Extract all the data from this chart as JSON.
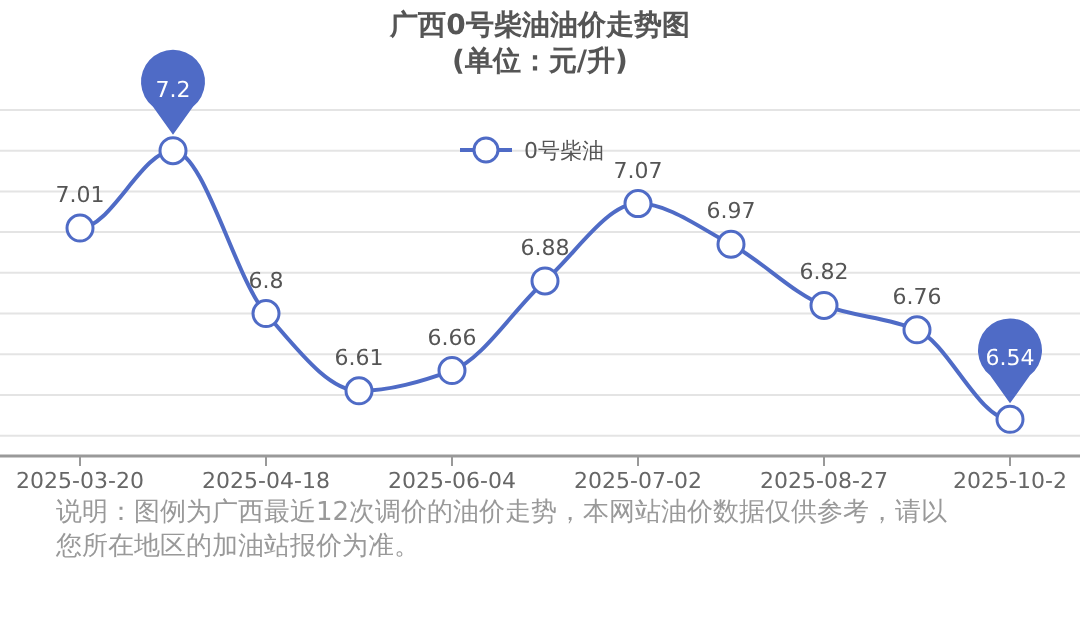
{
  "chart_data": {
    "type": "line",
    "title": "广西0号柴油油价走势图",
    "subtitle": "(单位：元/升)",
    "categories": [
      "2025-03-20",
      null,
      "2025-04-18",
      null,
      "2025-06-04",
      null,
      "2025-07-02",
      null,
      "2025-08-27",
      null,
      "2025-10-2"
    ],
    "series": [
      {
        "name": "0号柴油",
        "color": "#4f6bc6",
        "values": [
          7.01,
          7.2,
          6.8,
          6.61,
          6.66,
          6.88,
          7.07,
          6.97,
          6.82,
          6.76,
          6.54
        ]
      }
    ],
    "ylim": [
      6.45,
      7.3
    ],
    "yticks": [
      {
        "value": 6.5,
        "label": null
      },
      {
        "value": 6.6,
        "label": null
      },
      {
        "value": 6.7,
        "label": null
      },
      {
        "value": 6.8,
        "label": null
      },
      {
        "value": 6.9,
        "label": null
      },
      {
        "value": 7.0,
        "label": null
      },
      {
        "value": 7.1,
        "label": null
      },
      {
        "value": 7.2,
        "label": null
      },
      {
        "value": 7.3,
        "label": null
      }
    ],
    "tick_labels": "x",
    "grid": "y",
    "legend": "top",
    "marker": "circle",
    "line_style": "solid",
    "data_labels": true,
    "annotations": [
      "说明：图例为广西最近12次调价的油价走势，本网站油价数据仅供参考，请以您所在地区的加油站报价为准。"
    ]
  }
}
